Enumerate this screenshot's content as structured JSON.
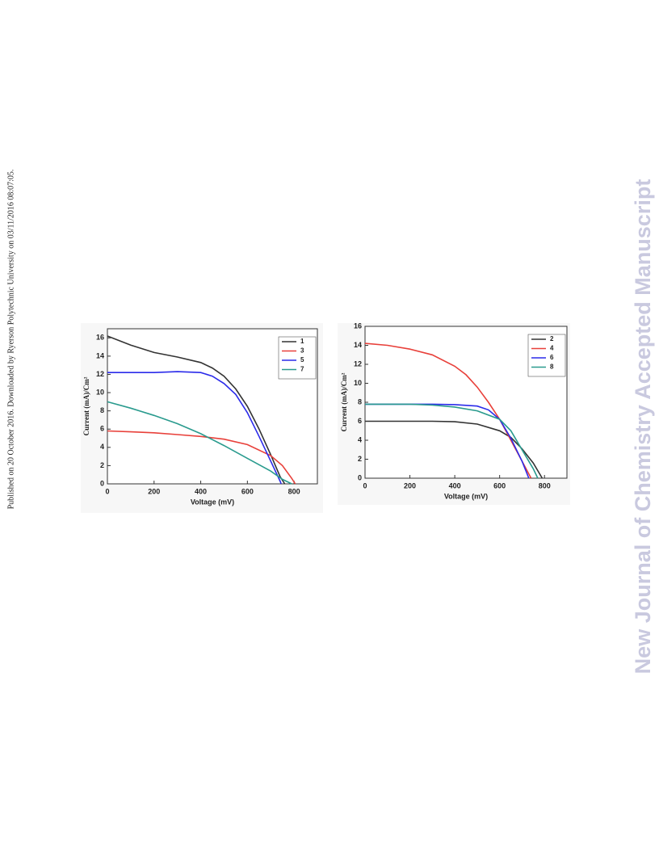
{
  "side_note": "Published on 20 October 2016. Downloaded by Ryerson Polytechnic University on 03/11/2016 08:07:05.",
  "watermark": "New Journal of Chemistry Accepted Manuscript",
  "chart_data": [
    {
      "type": "line",
      "x_label": "Voltage (mV)",
      "y_label": "Current (mA)/Cm²",
      "xlim": [
        0,
        900
      ],
      "xticks": [
        0,
        200,
        400,
        600,
        800
      ],
      "ylim": [
        0,
        17
      ],
      "yticks": [
        0,
        2,
        4,
        6,
        8,
        10,
        12,
        14,
        16
      ],
      "legend": "upper right",
      "series": [
        {
          "name": "1",
          "color": "#333333",
          "x": [
            0,
            100,
            200,
            300,
            400,
            450,
            500,
            550,
            600,
            650,
            700,
            740,
            760
          ],
          "values": [
            16.2,
            15.2,
            14.4,
            13.9,
            13.3,
            12.7,
            11.8,
            10.4,
            8.5,
            6,
            3.2,
            0.8,
            0
          ]
        },
        {
          "name": "3",
          "color": "#e8403a",
          "x": [
            0,
            100,
            200,
            300,
            400,
            500,
            600,
            700,
            750,
            790,
            805
          ],
          "values": [
            5.8,
            5.7,
            5.6,
            5.4,
            5.2,
            4.9,
            4.3,
            3.1,
            2,
            0.6,
            0
          ]
        },
        {
          "name": "5",
          "color": "#2b2bea",
          "x": [
            0,
            100,
            200,
            300,
            400,
            450,
            500,
            550,
            600,
            650,
            700,
            740,
            745
          ],
          "values": [
            12.2,
            12.2,
            12.2,
            12.3,
            12.2,
            11.8,
            11,
            9.8,
            7.8,
            5.2,
            2.5,
            0.3,
            0
          ]
        },
        {
          "name": "7",
          "color": "#2a9b8e",
          "x": [
            0,
            100,
            200,
            300,
            400,
            500,
            600,
            700,
            750,
            790
          ],
          "values": [
            9,
            8.3,
            7.5,
            6.6,
            5.5,
            4.2,
            2.8,
            1.4,
            0.5,
            0
          ]
        }
      ]
    },
    {
      "type": "line",
      "x_label": "Voltage (mV)",
      "y_label": "Current (mA)/Cm²",
      "xlim": [
        0,
        900
      ],
      "xticks": [
        0,
        200,
        400,
        600,
        800
      ],
      "ylim": [
        0,
        16
      ],
      "yticks": [
        0,
        2,
        4,
        6,
        8,
        10,
        12,
        14,
        16
      ],
      "legend": "upper right",
      "series": [
        {
          "name": "2",
          "color": "#333333",
          "x": [
            0,
            200,
            300,
            400,
            500,
            600,
            650,
            700,
            750,
            790
          ],
          "values": [
            6,
            6,
            6,
            5.95,
            5.7,
            5,
            4.3,
            3.1,
            1.6,
            0
          ]
        },
        {
          "name": "4",
          "color": "#e8403a",
          "x": [
            0,
            100,
            200,
            300,
            400,
            450,
            500,
            550,
            600,
            650,
            700,
            740
          ],
          "values": [
            14.2,
            14,
            13.6,
            13,
            11.8,
            10.9,
            9.6,
            8,
            6.2,
            4,
            1.8,
            0
          ]
        },
        {
          "name": "6",
          "color": "#2b2bea",
          "x": [
            0,
            200,
            300,
            400,
            500,
            550,
            600,
            650,
            700,
            730
          ],
          "values": [
            7.8,
            7.8,
            7.8,
            7.75,
            7.6,
            7.2,
            6.2,
            4.2,
            1.8,
            0
          ]
        },
        {
          "name": "8",
          "color": "#2a9b8e",
          "x": [
            0,
            200,
            300,
            400,
            500,
            600,
            650,
            700,
            750,
            770
          ],
          "values": [
            7.8,
            7.8,
            7.7,
            7.5,
            7.1,
            6.2,
            5,
            3,
            1,
            0
          ]
        }
      ]
    }
  ]
}
